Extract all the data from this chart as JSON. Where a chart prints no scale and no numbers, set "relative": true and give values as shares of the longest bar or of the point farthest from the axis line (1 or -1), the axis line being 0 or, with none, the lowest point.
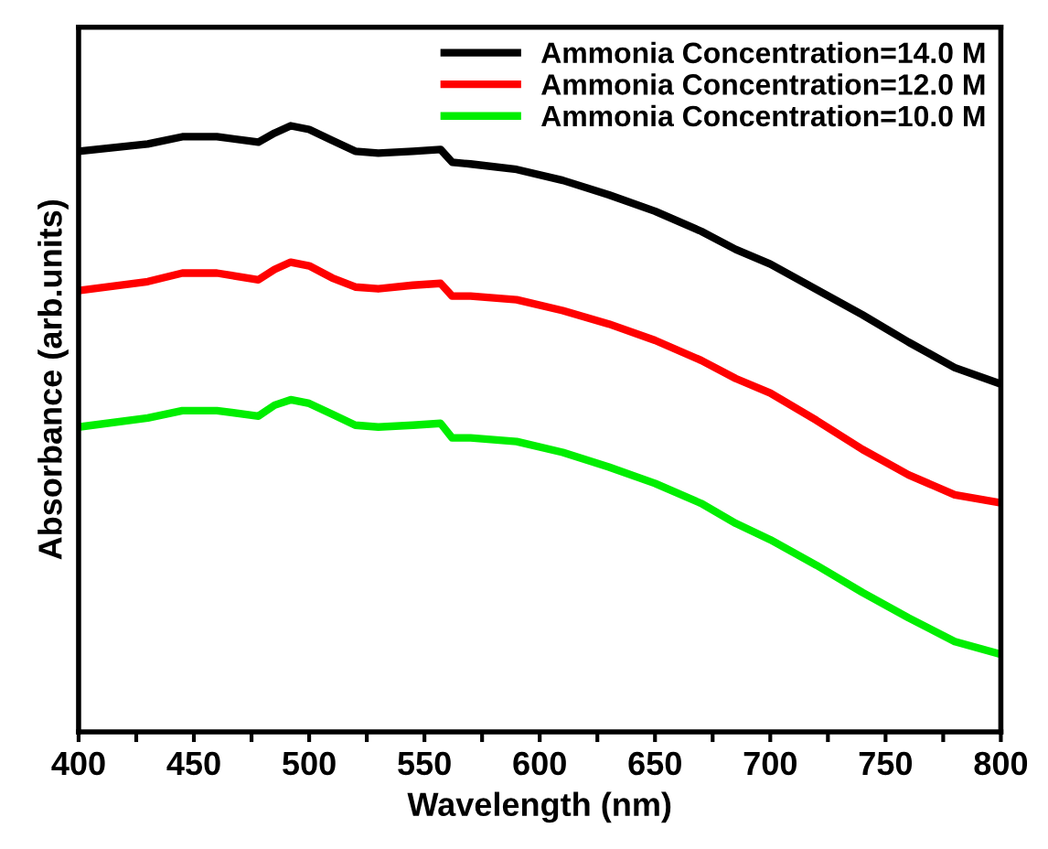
{
  "chart_data": {
    "type": "line",
    "xlabel": "Wavelength (nm)",
    "ylabel": "Absorbance (arb.units)",
    "relative": true,
    "xlim": [
      400,
      800
    ],
    "xticks": [
      400,
      {
        "value": 425,
        "label": null
      },
      450,
      {
        "value": 475,
        "label": null
      },
      500,
      {
        "value": 525,
        "label": null
      },
      550,
      {
        "value": 575,
        "label": null
      },
      600,
      {
        "value": 625,
        "label": null
      },
      650,
      {
        "value": 675,
        "label": null
      },
      700,
      {
        "value": 725,
        "label": null
      },
      750,
      {
        "value": 775,
        "label": null
      },
      800
    ],
    "legend": "top right",
    "tick_labels": "x",
    "series": [
      {
        "name": "Ammonia Concentration=14.0 M",
        "color": "#000000",
        "x": [
          400,
          430,
          445,
          460,
          478,
          485,
          492,
          500,
          510,
          520,
          530,
          545,
          557,
          562,
          570,
          590,
          610,
          630,
          650,
          670,
          685,
          700,
          720,
          740,
          760,
          780,
          800
        ],
        "values": [
          0.958,
          0.97,
          0.982,
          0.982,
          0.973,
          0.988,
          1.0,
          0.994,
          0.976,
          0.958,
          0.955,
          0.958,
          0.961,
          0.94,
          0.937,
          0.928,
          0.91,
          0.886,
          0.859,
          0.826,
          0.796,
          0.772,
          0.73,
          0.688,
          0.643,
          0.601,
          0.574
        ]
      },
      {
        "name": "Ammonia Concentration=12.0 M",
        "color": "#ff0000",
        "x": [
          400,
          430,
          445,
          460,
          478,
          485,
          492,
          500,
          510,
          520,
          530,
          545,
          557,
          562,
          570,
          590,
          610,
          630,
          650,
          670,
          685,
          700,
          720,
          740,
          760,
          780,
          800
        ],
        "values": [
          0.728,
          0.743,
          0.757,
          0.757,
          0.746,
          0.763,
          0.775,
          0.769,
          0.749,
          0.734,
          0.731,
          0.737,
          0.74,
          0.719,
          0.719,
          0.713,
          0.695,
          0.673,
          0.646,
          0.613,
          0.583,
          0.559,
          0.514,
          0.466,
          0.424,
          0.391,
          0.378
        ]
      },
      {
        "name": "Ammonia Concentration=10.0 M",
        "color": "#00ee00",
        "x": [
          400,
          430,
          445,
          460,
          478,
          485,
          492,
          500,
          510,
          520,
          530,
          545,
          557,
          562,
          570,
          590,
          610,
          630,
          650,
          670,
          685,
          700,
          720,
          740,
          760,
          780,
          800
        ],
        "values": [
          0.503,
          0.518,
          0.53,
          0.53,
          0.521,
          0.539,
          0.548,
          0.542,
          0.524,
          0.506,
          0.503,
          0.506,
          0.509,
          0.485,
          0.485,
          0.479,
          0.461,
          0.437,
          0.41,
          0.377,
          0.344,
          0.317,
          0.275,
          0.23,
          0.188,
          0.149,
          0.128
        ]
      }
    ]
  }
}
